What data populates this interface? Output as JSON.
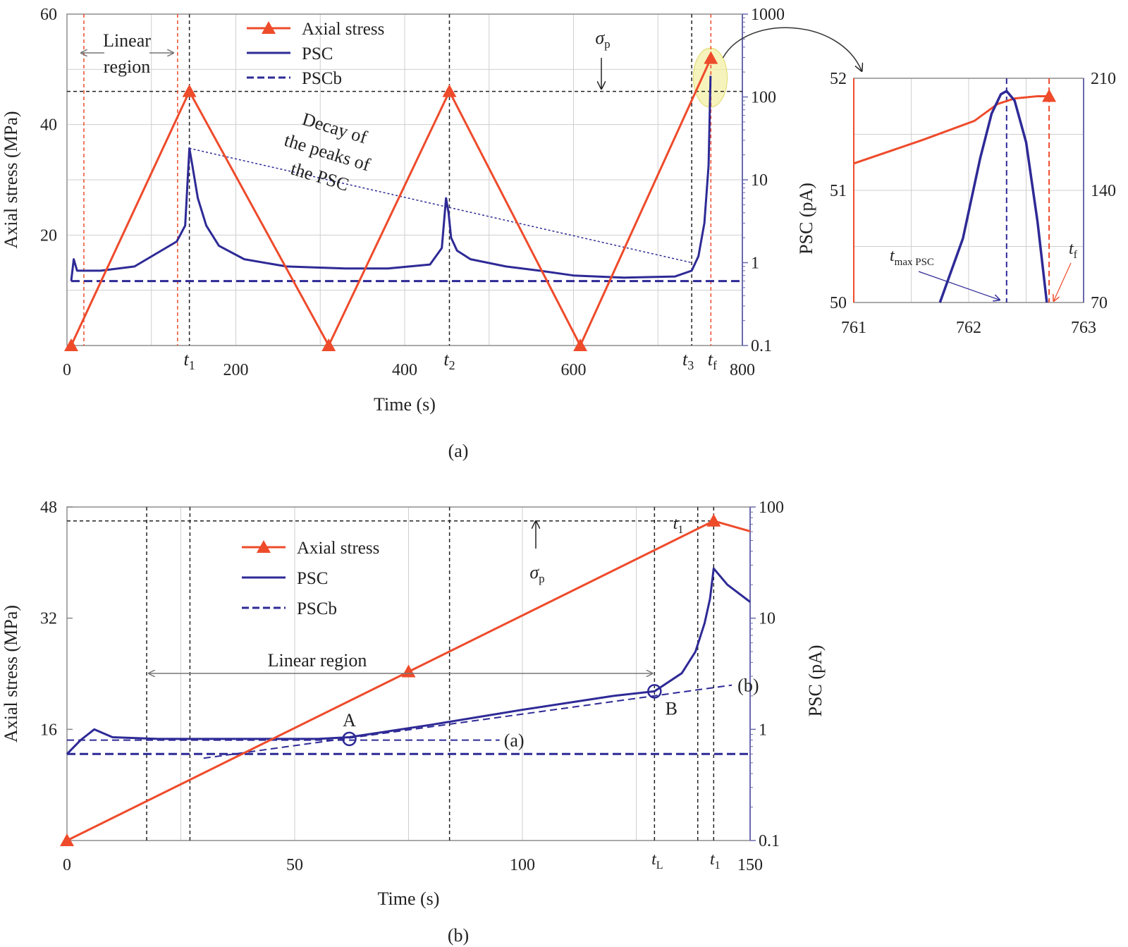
{
  "colors": {
    "stress": "#ee4b2b",
    "psc": "#2e2a96",
    "pscb": "#2e2a96",
    "rightaxis": "#6a6ab0",
    "highlight": "#f2f0a0"
  },
  "chart_data": [
    {
      "id": "a",
      "type": "line",
      "caption": "(a)",
      "xlabel": "Time (s)",
      "ylabel": "Axial stress (MPa)",
      "y2label": "",
      "xlim": [
        0,
        800
      ],
      "ylim": [
        0,
        60
      ],
      "y2lim": [
        0.1,
        1000
      ],
      "y2scale": "log",
      "xticks": [
        0,
        200,
        400,
        600,
        800
      ],
      "yticks": [
        20,
        40,
        60
      ],
      "y2ticks": [
        "0.1",
        "1",
        "10",
        "100",
        "1000"
      ],
      "legend": {
        "position": "top-center",
        "entries": [
          "Axial stress",
          "PSC",
          "PSCb"
        ]
      },
      "series": [
        {
          "name": "Axial stress",
          "axis": "y",
          "x": [
            5,
            145,
            310,
            453,
            608,
            762.7
          ],
          "y": [
            0,
            46,
            0,
            46,
            0,
            52
          ]
        },
        {
          "name": "PSC",
          "axis": "y2",
          "x": [
            5,
            8,
            12,
            40,
            80,
            130,
            140,
            145,
            148,
            155,
            165,
            180,
            210,
            260,
            330,
            380,
            430,
            444,
            449,
            452,
            455,
            462,
            478,
            520,
            560,
            600,
            660,
            720,
            740,
            748,
            755,
            760,
            762.3
          ],
          "y": [
            0.6,
            1.1,
            0.8,
            0.8,
            0.9,
            1.8,
            2.8,
            24,
            16,
            6,
            2.8,
            1.6,
            1.1,
            0.9,
            0.85,
            0.85,
            0.95,
            1.5,
            6,
            4,
            2,
            1.4,
            1.1,
            0.9,
            0.8,
            0.7,
            0.66,
            0.68,
            0.8,
            1.2,
            3,
            15,
            180
          ]
        },
        {
          "name": "PSCb",
          "axis": "y2",
          "x": [
            5,
            800
          ],
          "y": [
            0.6,
            0.6
          ]
        }
      ],
      "vlines_black": [
        145,
        453,
        740
      ],
      "vlines_red": [
        20,
        131,
        762.7
      ],
      "hline_black_y": 46,
      "annotations": {
        "linear_region": "Linear\nregion",
        "decay": "Decay of\nthe peaks of\nthe PSC",
        "sigma_p": "σp",
        "t1": "t1",
        "t2": "t2",
        "t3": "t3",
        "tf": "tf"
      },
      "decay_line": {
        "x": [
          145,
          740
        ],
        "y2": [
          24,
          1.0
        ]
      }
    },
    {
      "id": "a-inset",
      "type": "line",
      "xlabel": "",
      "ylabel": "",
      "y2label": "PSC (pA)",
      "xlim": [
        761,
        763
      ],
      "ylim": [
        50,
        52
      ],
      "y2lim": [
        70,
        210
      ],
      "xticks": [
        761,
        762,
        763
      ],
      "yticks": [
        50,
        51,
        52
      ],
      "y2ticks": [
        70,
        140,
        210
      ],
      "series": [
        {
          "name": "Axial stress",
          "axis": "y",
          "x": [
            761,
            761.6,
            762.05,
            762.25,
            762.4,
            762.6,
            762.7
          ],
          "y": [
            51.24,
            51.45,
            51.62,
            51.77,
            51.82,
            51.84,
            51.84
          ]
        },
        {
          "name": "PSC",
          "axis": "y2",
          "x": [
            761.75,
            761.95,
            762.1,
            762.2,
            762.28,
            762.33,
            762.4,
            762.5,
            762.6,
            762.68
          ],
          "y": [
            70,
            110,
            160,
            188,
            200,
            202,
            196,
            170,
            120,
            70
          ]
        }
      ],
      "vlines": [
        {
          "x": 762.33,
          "color": "psc"
        },
        {
          "x": 762.7,
          "color": "stress"
        }
      ],
      "annotations": {
        "tmax": "tmax PSC",
        "tf": "tf"
      }
    },
    {
      "id": "b",
      "type": "line",
      "caption": "(b)",
      "xlabel": "Time (s)",
      "ylabel": "Axial stress (MPa)",
      "y2label": "PSC (pA)",
      "xlim": [
        0,
        150
      ],
      "ylim": [
        0,
        48
      ],
      "y2lim": [
        0.1,
        100
      ],
      "y2scale": "log",
      "xticks": [
        0,
        50,
        100,
        150
      ],
      "yticks": [
        16,
        32,
        48
      ],
      "y2ticks": [
        "0.1",
        "1",
        "10",
        "100"
      ],
      "legend": {
        "position": "top-left",
        "entries": [
          "Axial stress",
          "PSC",
          "PSCb"
        ]
      },
      "series": [
        {
          "name": "Axial stress",
          "axis": "y",
          "x": [
            0,
            142,
            150
          ],
          "y": [
            0,
            46,
            44.5
          ]
        },
        {
          "name": "PSC",
          "axis": "y2",
          "x": [
            0,
            3,
            6,
            10,
            20,
            40,
            55,
            62,
            80,
            100,
            120,
            129,
            135,
            138,
            140,
            141.2,
            142,
            145,
            150
          ],
          "y": [
            0.6,
            0.8,
            1.0,
            0.85,
            0.82,
            0.82,
            0.82,
            0.85,
            1.1,
            1.5,
            2.0,
            2.2,
            3.2,
            5,
            9,
            15,
            28,
            20,
            14
          ]
        },
        {
          "name": "PSCb",
          "axis": "y2",
          "x": [
            0,
            150
          ],
          "y": [
            0.6,
            0.6
          ]
        }
      ],
      "fit_lines": [
        {
          "label": "(a)",
          "x": [
            0,
            95
          ],
          "y2": [
            0.8,
            0.8
          ]
        },
        {
          "label": "(b)",
          "x": [
            30,
            146
          ],
          "y2": [
            0.55,
            2.5
          ]
        }
      ],
      "points": [
        {
          "label": "A",
          "x": 62,
          "y2": 0.82
        },
        {
          "label": "B",
          "x": 129,
          "y2": 2.2
        }
      ],
      "vlines_black": [
        17.5,
        27,
        84,
        129,
        138.5,
        142
      ],
      "hline_black_y": 46,
      "annotations": {
        "linear_region": "Linear region",
        "sigma_p": "σp",
        "t1": "t1",
        "tL": "tL",
        "t1_end": "t1"
      }
    }
  ]
}
